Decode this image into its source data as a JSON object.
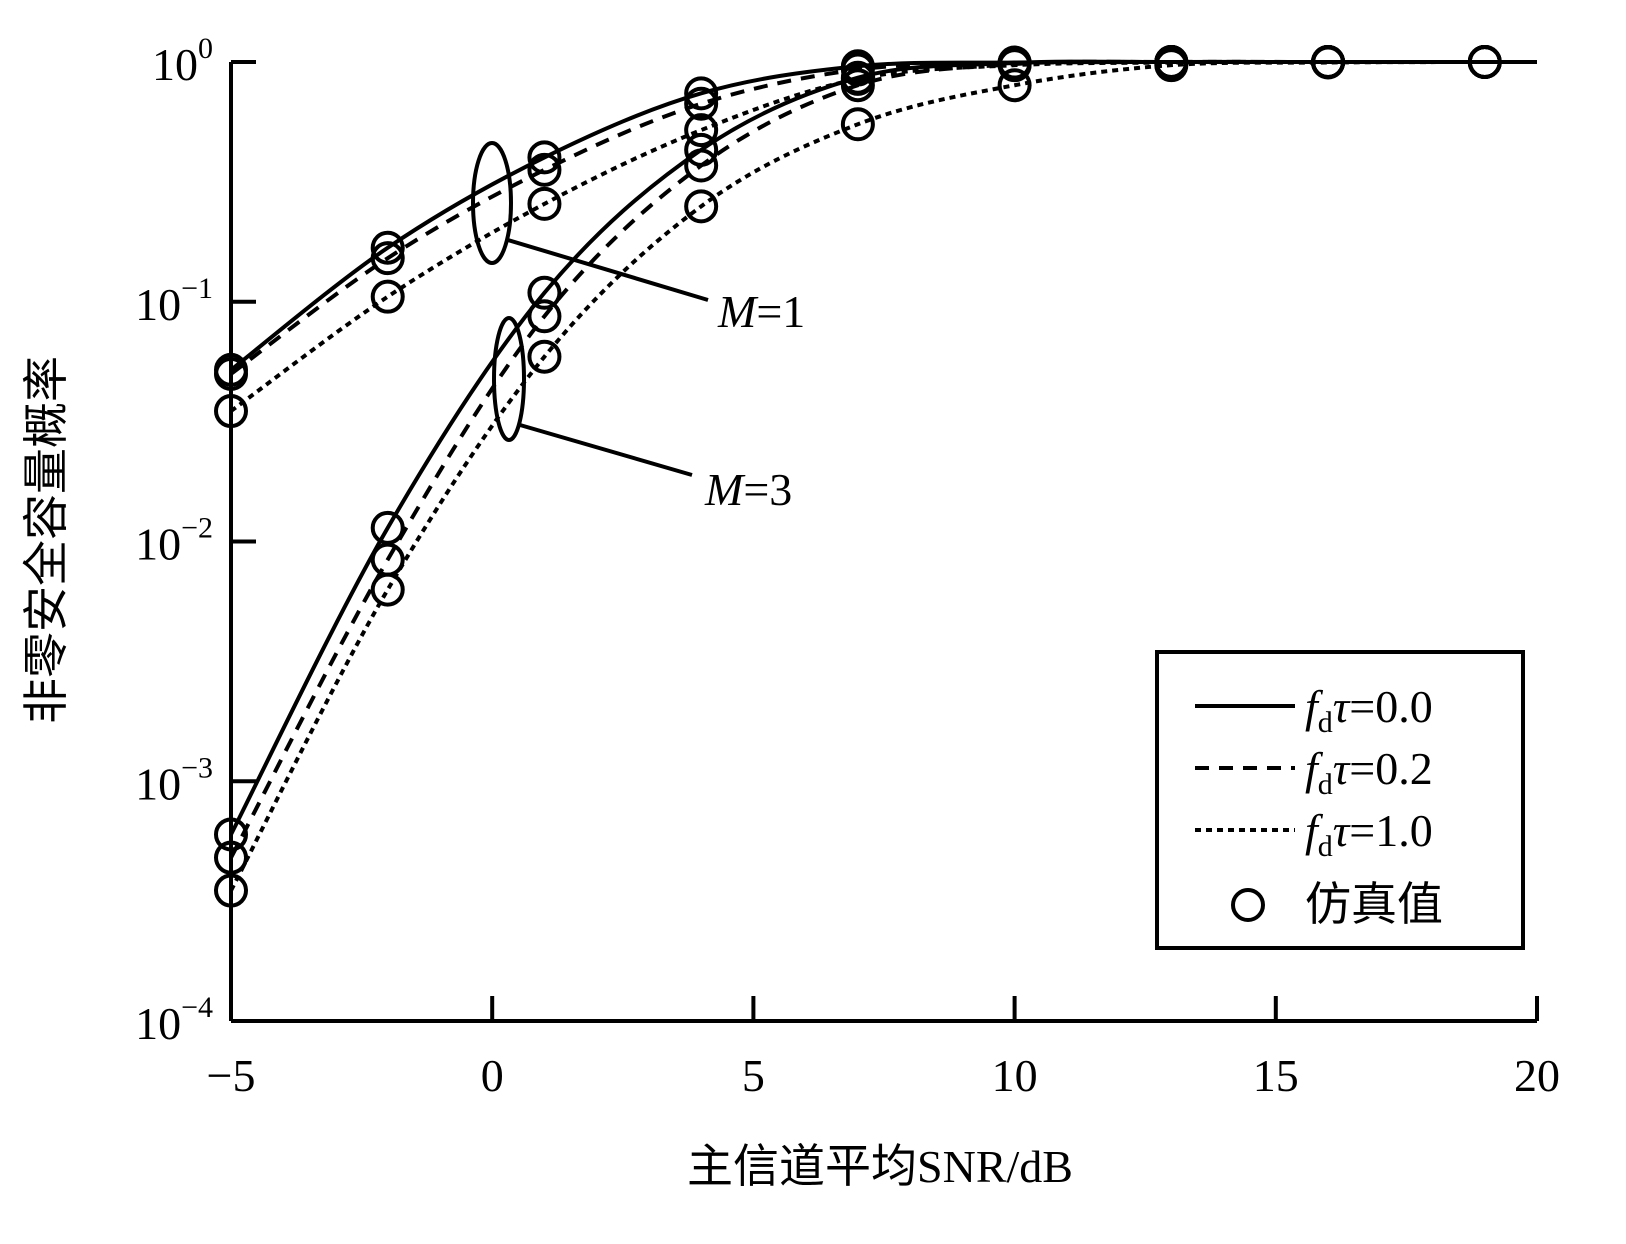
{
  "chart_data": {
    "type": "line",
    "title": "",
    "xlabel": "主信道平均SNR/dB",
    "ylabel": "非零安全容量概率",
    "xlim": [
      -5,
      20
    ],
    "ylim": [
      0.0001,
      1
    ],
    "yscale": "log",
    "xticks": [
      -5,
      0,
      5,
      10,
      15,
      20
    ],
    "xtick_labels": [
      "−5",
      "0",
      "5",
      "10",
      "15",
      "20"
    ],
    "yticks": [
      {
        "base": "10",
        "exp": "0"
      },
      {
        "base": "10",
        "exp": "−1"
      },
      {
        "base": "10",
        "exp": "−2"
      },
      {
        "base": "10",
        "exp": "−3"
      },
      {
        "base": "10",
        "exp": "−4"
      }
    ],
    "ytick_values": [
      1,
      0.1,
      0.01,
      0.001,
      0.0001
    ],
    "x": [
      -5,
      -2,
      1,
      4,
      7,
      10,
      13,
      16,
      19,
      20
    ],
    "series": [
      {
        "name": "M=1, fdτ=0.0",
        "style": "solid",
        "values": [
          0.052,
          0.168,
          0.4,
          0.74,
          0.96,
          0.995,
          1,
          1,
          1,
          1
        ]
      },
      {
        "name": "M=1, fdτ=0.2",
        "style": "dashed",
        "values": [
          0.05,
          0.152,
          0.355,
          0.67,
          0.93,
          0.99,
          1,
          1,
          1,
          1
        ]
      },
      {
        "name": "M=1, fdτ=1.0",
        "style": "dotted",
        "values": [
          0.035,
          0.105,
          0.256,
          0.52,
          0.85,
          0.97,
          0.995,
          1,
          1,
          1
        ]
      },
      {
        "name": "M=3, fdτ=0.0",
        "style": "solid",
        "values": [
          0.0006,
          0.0114,
          0.109,
          0.43,
          0.86,
          0.99,
          1,
          1,
          1,
          1
        ]
      },
      {
        "name": "M=3, fdτ=0.2",
        "style": "dashed",
        "values": [
          0.00048,
          0.0084,
          0.087,
          0.37,
          0.8,
          0.98,
          1,
          1,
          1,
          1
        ]
      },
      {
        "name": "M=3, fdτ=1.0",
        "style": "dotted",
        "values": [
          0.00035,
          0.0063,
          0.059,
          0.25,
          0.55,
          0.8,
          0.97,
          0.995,
          1,
          1
        ]
      }
    ],
    "annotations": [
      {
        "m": "M",
        "eq": "=1"
      },
      {
        "m": "M",
        "eq": "=3"
      }
    ],
    "legend": {
      "placement": "bottom-right",
      "entries": [
        {
          "f": "f",
          "sub": "d",
          "tau": "τ",
          "val": "=0.0",
          "style": "solid"
        },
        {
          "f": "f",
          "sub": "d",
          "tau": "τ",
          "val": "=0.2",
          "style": "dashed"
        },
        {
          "f": "f",
          "sub": "d",
          "tau": "τ",
          "val": "=1.0",
          "style": "dotted"
        }
      ],
      "marker_label": "仿真值"
    },
    "grid": false
  }
}
